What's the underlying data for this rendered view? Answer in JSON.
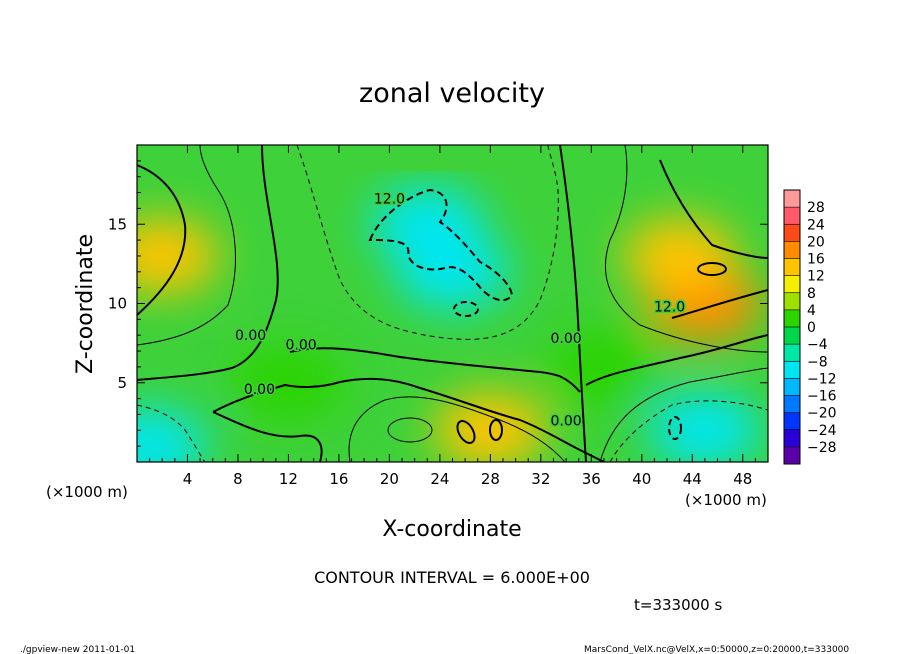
{
  "chart_data": {
    "type": "heatmap",
    "title": "zonal velocity",
    "xlabel": "X-coordinate",
    "ylabel": "Z-coordinate",
    "x_unit_left": "(×1000 m)",
    "x_unit_right": "(×1000 m)",
    "xlim": [
      0,
      50
    ],
    "ylim": [
      0,
      20
    ],
    "x_ticks": [
      4,
      8,
      12,
      16,
      20,
      24,
      28,
      32,
      36,
      40,
      44,
      48
    ],
    "y_ticks": [
      5,
      10,
      15
    ],
    "contour_interval_text": "CONTOUR INTERVAL = 6.000E+00",
    "time_text": "t=333000 s",
    "footer_left": "./gpview-new  2011-01-01",
    "footer_right": "MarsCond_VelX.nc@VelX,x=0:50000,z=0:20000,t=333000",
    "contour_labels": [
      {
        "text": "12.0",
        "x": 20,
        "z": 16.3
      },
      {
        "text": "12.0",
        "x": 42.2,
        "z": 9.5
      },
      {
        "text": "0.00",
        "x": 9,
        "z": 7.7
      },
      {
        "text": "0.00",
        "x": 9.7,
        "z": 4.3
      },
      {
        "text": "0.00",
        "x": 13,
        "z": 7.1
      },
      {
        "text": "0.00",
        "x": 34,
        "z": 7.5
      },
      {
        "text": "0.00",
        "x": 34,
        "z": 2.3
      }
    ],
    "colorbar": {
      "levels": [
        -28,
        -24,
        -20,
        -16,
        -12,
        -8,
        -4,
        0,
        4,
        8,
        12,
        16,
        20,
        24,
        28
      ],
      "colors": [
        "#5b00a8",
        "#2a00d9",
        "#0036ff",
        "#0078ff",
        "#00b8ff",
        "#00e6f0",
        "#00e8a8",
        "#00d84a",
        "#2cd400",
        "#a0e000",
        "#f2f000",
        "#ffc400",
        "#ff8c00",
        "#ff4a1a",
        "#ff5a6a",
        "#ff9a9a"
      ]
    },
    "field_features": [
      {
        "x": 23,
        "z": 15,
        "value": -12
      },
      {
        "x": 25,
        "z": 12,
        "value": -10
      },
      {
        "x": 45,
        "z": 10,
        "value": 17
      },
      {
        "x": 43,
        "z": 13,
        "value": 13
      },
      {
        "x": 2,
        "z": 13,
        "value": 13
      },
      {
        "x": 28,
        "z": 2,
        "value": 13
      },
      {
        "x": 45,
        "z": 2,
        "value": -12
      },
      {
        "x": 1,
        "z": 1,
        "value": -10
      },
      {
        "x": 12,
        "z": 5,
        "value": 2
      },
      {
        "x": 37,
        "z": 6,
        "value": 3
      }
    ]
  }
}
